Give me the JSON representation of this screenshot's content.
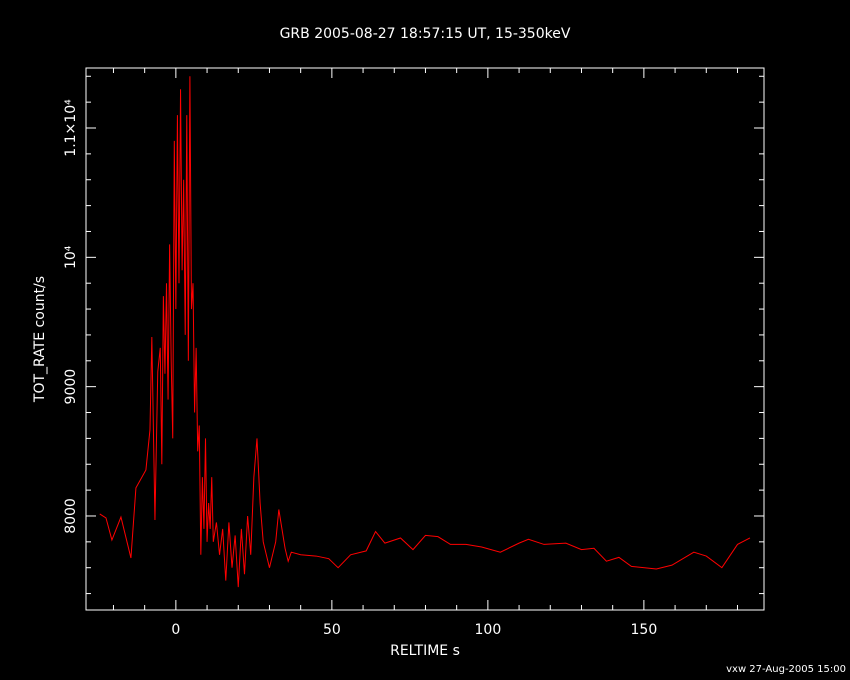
{
  "chart_data": {
    "type": "line",
    "title": "GRB 2005-08-27 18:57:15 UT, 15-350keV",
    "x_label": "RELTIME  s",
    "y_label": "TOT_RATE  count/s",
    "footer": "vxw 27-Aug-2005 15:00",
    "xlim": [
      -28.8,
      188.5
    ],
    "ylim": [
      7273,
      11464
    ],
    "xticks": [
      0,
      50,
      100,
      150
    ],
    "yticks": [
      8000,
      9000,
      {
        "value": 10000,
        "label": "10⁴"
      },
      {
        "value": 11000,
        "label": "1.1×10⁴"
      }
    ],
    "xminorticks": [
      -20,
      -10,
      10,
      20,
      30,
      40,
      60,
      70,
      80,
      90,
      110,
      120,
      130,
      140,
      160,
      170,
      180
    ],
    "yminorticks": [
      7400,
      7600,
      7800,
      8200,
      8400,
      8600,
      8800,
      9200,
      9400,
      9600,
      9800,
      10200,
      10400,
      10600,
      10800,
      11200,
      11400
    ],
    "x": [
      -24.4,
      -22.4,
      -20.5,
      -17.6,
      -14.4,
      -12.8,
      -9.6,
      -8.3,
      -7.7,
      -6.7,
      -5.8,
      -5.0,
      -4.5,
      -4.0,
      -3.5,
      -3.0,
      -2.5,
      -2.0,
      -1.5,
      -1.0,
      -0.5,
      0,
      0.5,
      1.0,
      1.5,
      2.0,
      2.5,
      3.0,
      3.5,
      4.0,
      4.5,
      5.0,
      5.5,
      6.0,
      6.5,
      7.0,
      7.5,
      8.0,
      8.5,
      9,
      9.5,
      10,
      10.5,
      11,
      11.5,
      12,
      13,
      14,
      15,
      16,
      17,
      18,
      19,
      20,
      21,
      22,
      23,
      24,
      25,
      26,
      27,
      28,
      30,
      32,
      33,
      35,
      36,
      37,
      40,
      45,
      49,
      52,
      56,
      61,
      64,
      67,
      72,
      76,
      80,
      84,
      88,
      93,
      98,
      104,
      110,
      113,
      118,
      125,
      130,
      134,
      138,
      142,
      146,
      154,
      159,
      166,
      170,
      175,
      180,
      184
    ],
    "series": [
      {
        "name": "TOT_RATE",
        "color": "#ff0000",
        "values": [
          8016,
          7985,
          7814,
          7992,
          7675,
          8217,
          8356,
          8665,
          9384,
          7969,
          9116,
          9300,
          8400,
          9700,
          9100,
          9800,
          8900,
          10100,
          9200,
          8600,
          10900,
          9600,
          11100,
          9800,
          11300,
          9900,
          10600,
          9400,
          11100,
          9200,
          11400,
          9600,
          9800,
          8800,
          9300,
          8500,
          8700,
          7700,
          8300,
          7900,
          8600,
          7800,
          8100,
          7900,
          8300,
          7800,
          7950,
          7700,
          7900,
          7500,
          7950,
          7600,
          7850,
          7450,
          7900,
          7550,
          8000,
          7700,
          8300,
          8600,
          8100,
          7800,
          7600,
          7800,
          8050,
          7750,
          7650,
          7720,
          7700,
          7690,
          7670,
          7600,
          7700,
          7730,
          7880,
          7790,
          7830,
          7740,
          7850,
          7840,
          7780,
          7780,
          7760,
          7720,
          7790,
          7820,
          7780,
          7790,
          7740,
          7750,
          7650,
          7680,
          7610,
          7590,
          7620,
          7720,
          7690,
          7600,
          7780,
          7830
        ]
      }
    ]
  }
}
